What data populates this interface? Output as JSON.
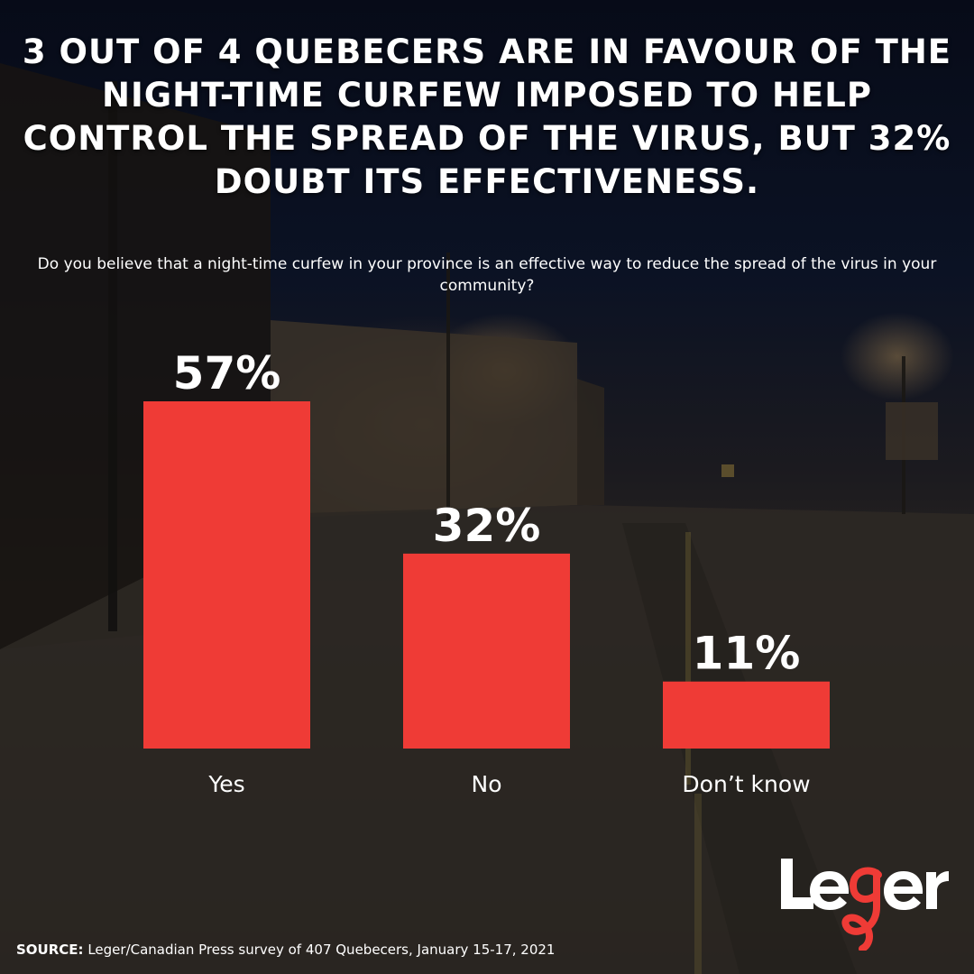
{
  "headline": "3 OUT OF 4 QUEBECERS ARE IN FAVOUR OF THE NIGHT-TIME CURFEW IMPOSED TO HELP CONTROL THE SPREAD OF THE VIRUS, BUT 32% DOUBT ITS EFFECTIVENESS.",
  "question": "Do you believe that a night-time curfew in your province is an effective way to reduce the spread of the virus in your community?",
  "source": {
    "label": "SOURCE:",
    "text": "Leger/Canadian Press survey of 407 Quebecers, January 15-17, 2021"
  },
  "logo": {
    "text": "Leger"
  },
  "colors": {
    "bar": "#ef3b36",
    "text": "#ffffff"
  },
  "chart_data": {
    "type": "bar",
    "title": "",
    "xlabel": "",
    "ylabel": "",
    "categories": [
      "Yes",
      "No",
      "Don’t know"
    ],
    "values": [
      57,
      32,
      11
    ],
    "data_labels": [
      "57%",
      "32%",
      "11%"
    ],
    "ylim": [
      0,
      57
    ],
    "grid": false,
    "legend": "none"
  }
}
